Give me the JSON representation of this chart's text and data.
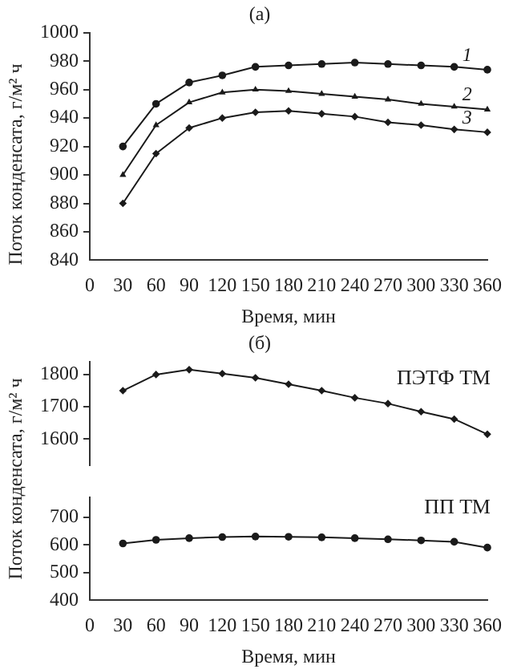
{
  "chart_data": [
    {
      "type": "line",
      "title": "(а)",
      "xlabel": "Время, мин",
      "ylabel": "Поток конденсата, г/м² ч",
      "x": [
        30,
        60,
        90,
        120,
        150,
        180,
        210,
        240,
        270,
        300,
        330,
        360
      ],
      "xlim": [
        0,
        360
      ],
      "xticks": [
        0,
        30,
        60,
        90,
        120,
        150,
        180,
        210,
        240,
        270,
        300,
        330,
        360
      ],
      "ylim": [
        840,
        1000
      ],
      "yticks": [
        840,
        860,
        880,
        900,
        920,
        940,
        960,
        980,
        1000
      ],
      "grid": false,
      "legend": false,
      "line_style": "solid",
      "series": [
        {
          "name": "1",
          "color": "#1a1a1a",
          "marker": "circle",
          "values": [
            920,
            950,
            965,
            970,
            976,
            977,
            978,
            979,
            978,
            977,
            976,
            974
          ]
        },
        {
          "name": "2",
          "color": "#1a1a1a",
          "marker": "triangle",
          "values": [
            900,
            935,
            951,
            958,
            960,
            959,
            957,
            955,
            953,
            950,
            948,
            946
          ]
        },
        {
          "name": "3",
          "color": "#1a1a1a",
          "marker": "diamond",
          "values": [
            880,
            915,
            933,
            940,
            944,
            945,
            943,
            941,
            937,
            935,
            932,
            930
          ]
        }
      ]
    },
    {
      "type": "line",
      "title": "(б)",
      "ylabel": "Поток конденсата, г/м² ч",
      "x": [
        30,
        60,
        90,
        120,
        150,
        180,
        210,
        240,
        270,
        300,
        330,
        360
      ],
      "xlim": [
        0,
        360
      ],
      "ylim": [
        1520,
        1840
      ],
      "yticks": [
        1600,
        1700,
        1800
      ],
      "grid": false,
      "legend": false,
      "line_style": "solid",
      "tick_labels": "y",
      "series": [
        {
          "name": "ПЭТФ ТМ",
          "color": "#1a1a1a",
          "marker": "diamond",
          "values": [
            1750,
            1800,
            1815,
            1803,
            1790,
            1770,
            1750,
            1728,
            1710,
            1685,
            1662,
            1615
          ]
        }
      ]
    },
    {
      "type": "line",
      "xlabel": "Время, мин",
      "x": [
        30,
        60,
        90,
        120,
        150,
        180,
        210,
        240,
        270,
        300,
        330,
        360
      ],
      "xlim": [
        0,
        360
      ],
      "xticks": [
        0,
        30,
        60,
        90,
        120,
        150,
        180,
        210,
        240,
        270,
        300,
        330,
        360
      ],
      "ylim": [
        400,
        770
      ],
      "yticks": [
        400,
        500,
        600,
        700
      ],
      "grid": false,
      "legend": false,
      "line_style": "solid",
      "series": [
        {
          "name": "ПП ТМ",
          "color": "#1a1a1a",
          "marker": "circle",
          "values": [
            605,
            618,
            624,
            628,
            630,
            629,
            627,
            624,
            620,
            616,
            611,
            590
          ]
        }
      ]
    }
  ]
}
